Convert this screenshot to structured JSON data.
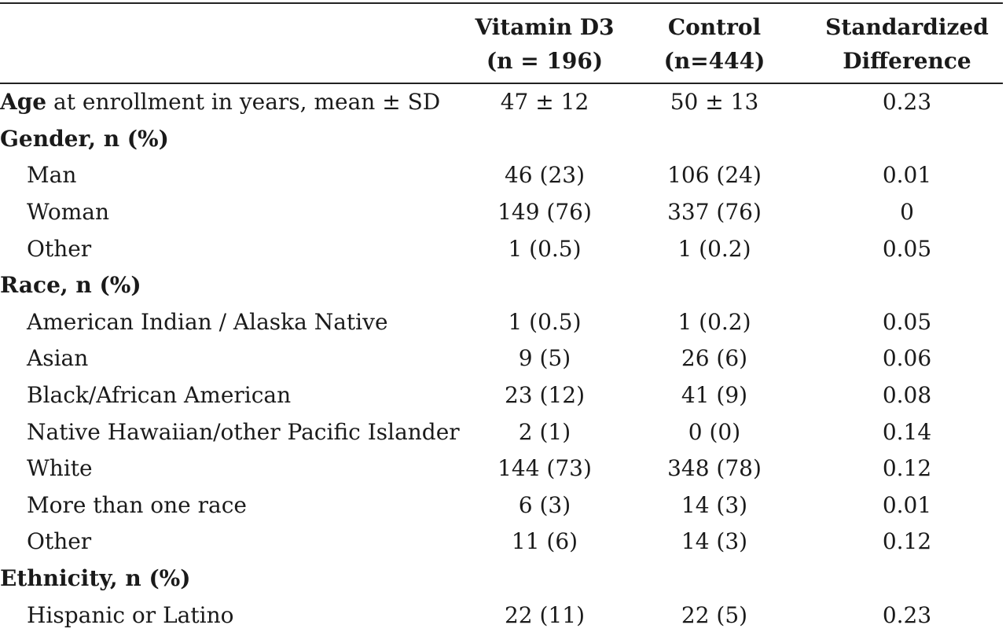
{
  "table": {
    "headers": {
      "col1": [
        "Vitamin D3",
        "(n = 196)"
      ],
      "col2": [
        "Control",
        "(n=444)"
      ],
      "col3": [
        "Standardized",
        "Difference"
      ]
    },
    "rows": [
      {
        "type": "data",
        "label_bold": "Age",
        "label_rest": " at enrollment in years, mean ± SD",
        "values": [
          "47 ± 12",
          "50 ± 13",
          "0.23"
        ]
      },
      {
        "type": "section",
        "label": "Gender, n (%)"
      },
      {
        "type": "data",
        "label": "Man",
        "values": [
          "46 (23)",
          "106 (24)",
          "0.01"
        ]
      },
      {
        "type": "data",
        "label": "Woman",
        "values": [
          "149 (76)",
          "337 (76)",
          "0"
        ]
      },
      {
        "type": "data",
        "label": "Other",
        "values": [
          "1 (0.5)",
          "1 (0.2)",
          "0.05"
        ]
      },
      {
        "type": "section",
        "label": "Race, n (%)"
      },
      {
        "type": "data",
        "label": "American Indian / Alaska Native",
        "values": [
          "1 (0.5)",
          "1 (0.2)",
          "0.05"
        ]
      },
      {
        "type": "data",
        "label": "Asian",
        "values": [
          "9 (5)",
          "26 (6)",
          "0.06"
        ]
      },
      {
        "type": "data",
        "label": "Black/African American",
        "values": [
          "23 (12)",
          "41 (9)",
          "0.08"
        ]
      },
      {
        "type": "data",
        "label": "Native Hawaiian/other Pacific Islander",
        "values": [
          "2 (1)",
          "0 (0)",
          "0.14"
        ]
      },
      {
        "type": "data",
        "label": "White",
        "values": [
          "144 (73)",
          "348 (78)",
          "0.12"
        ]
      },
      {
        "type": "data",
        "label": "More than one race",
        "values": [
          "6 (3)",
          "14 (3)",
          "0.01"
        ]
      },
      {
        "type": "data",
        "label": "Other",
        "values": [
          "11 (6)",
          "14 (3)",
          "0.12"
        ]
      },
      {
        "type": "section",
        "label": "Ethnicity, n (%)"
      },
      {
        "type": "data",
        "label": "Hispanic or Latino",
        "values": [
          "22 (11)",
          "22 (5)",
          "0.23"
        ]
      }
    ]
  }
}
